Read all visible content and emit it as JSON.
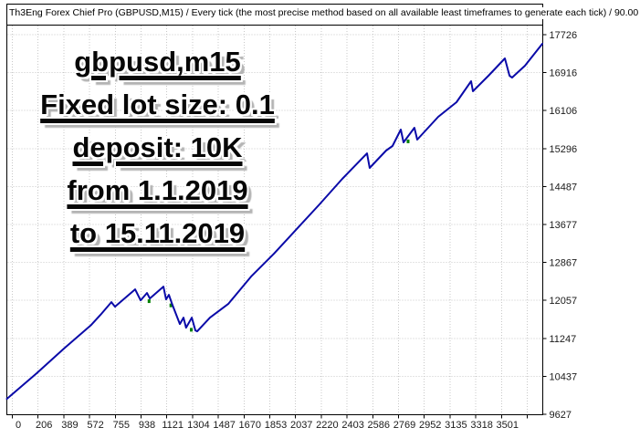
{
  "window": {
    "title": "Th3Eng Forex Chief Pro (GBPUSD,M15) / Every tick (the most precise method based on all available least timeframes to generate each tick) / 90.00"
  },
  "overlay": {
    "lines": [
      "gbpusd,m15",
      "Fixed lot size: 0.1",
      "deposit: 10K",
      "from 1.1.2019",
      "to 15.11.2019"
    ]
  },
  "colors": {
    "balance_line": "#0a0aa8",
    "grid": "#c8c8c8",
    "axis": "#000000",
    "lot_marker": "#008000",
    "annotation_text": "#070707",
    "annotation_shadow": "#b4b4b4"
  },
  "chart_data": {
    "type": "line",
    "title": "Th3Eng Forex Chief Pro (GBPUSD,M15) / Every tick (the most precise method based on all available least timeframes to generate each tick) / 90.00",
    "grid": true,
    "legend": false,
    "x_ticks": [
      "0",
      "206",
      "389",
      "572",
      "755",
      "938",
      "1121",
      "1304",
      "1487",
      "1670",
      "1853",
      "2037",
      "2220",
      "2403",
      "2586",
      "2769",
      "2952",
      "3135",
      "3318",
      "3501"
    ],
    "y_ticks": [
      17726,
      16916,
      16106,
      15296,
      14487,
      13677,
      12867,
      12057,
      11247,
      10437,
      9627
    ],
    "xlim": [
      0,
      3790
    ],
    "ylim": [
      9627,
      17726
    ],
    "series": [
      {
        "name": "balance",
        "points": [
          [
            0,
            9956
          ],
          [
            194,
            10501
          ],
          [
            389,
            11027
          ],
          [
            584,
            11533
          ],
          [
            649,
            11747
          ],
          [
            727,
            12020
          ],
          [
            753,
            11922
          ],
          [
            896,
            12292
          ],
          [
            935,
            12059
          ],
          [
            980,
            12214
          ],
          [
            1000,
            12098
          ],
          [
            1097,
            12351
          ],
          [
            1116,
            12078
          ],
          [
            1136,
            12176
          ],
          [
            1156,
            12000
          ],
          [
            1214,
            11553
          ],
          [
            1240,
            11689
          ],
          [
            1258,
            11475
          ],
          [
            1299,
            11689
          ],
          [
            1324,
            11416
          ],
          [
            1337,
            11397
          ],
          [
            1428,
            11689
          ],
          [
            1558,
            11981
          ],
          [
            1720,
            12565
          ],
          [
            1882,
            13052
          ],
          [
            2044,
            13578
          ],
          [
            2206,
            14104
          ],
          [
            2368,
            14649
          ],
          [
            2544,
            15194
          ],
          [
            2563,
            14883
          ],
          [
            2680,
            15253
          ],
          [
            2725,
            15350
          ],
          [
            2784,
            15701
          ],
          [
            2804,
            15428
          ],
          [
            2881,
            15740
          ],
          [
            2901,
            15487
          ],
          [
            3050,
            15973
          ],
          [
            3180,
            16285
          ],
          [
            3284,
            16733
          ],
          [
            3297,
            16519
          ],
          [
            3407,
            16850
          ],
          [
            3524,
            17220
          ],
          [
            3557,
            16850
          ],
          [
            3575,
            16811
          ],
          [
            3667,
            17064
          ],
          [
            3790,
            17532
          ]
        ]
      }
    ],
    "lot_markers": [
      [
        995,
        12040
      ],
      [
        1150,
        11950
      ],
      [
        1295,
        11430
      ],
      [
        2836,
        15450
      ]
    ],
    "summary": {
      "start_balance": 9956,
      "end_balance": 17532
    }
  }
}
